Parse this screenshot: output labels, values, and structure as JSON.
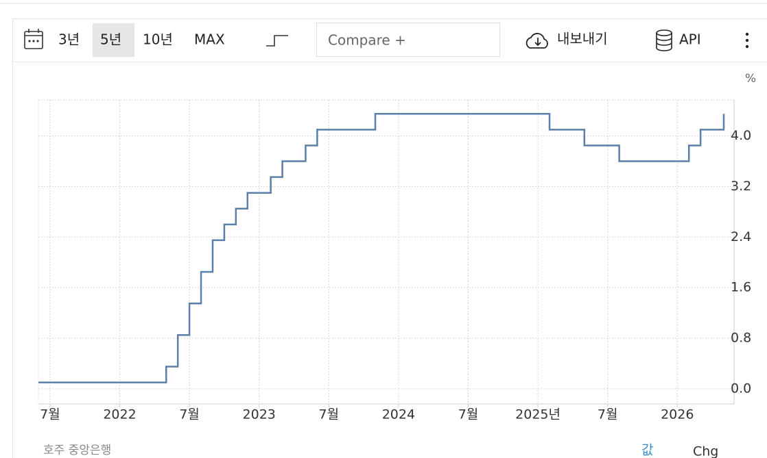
{
  "toolbar": {
    "ranges": [
      "3년",
      "5년",
      "10년",
      "MAX"
    ],
    "compare": "Compare +",
    "export": "내보내기",
    "api": "API"
  },
  "footer": {
    "source": "호주 중앙은행",
    "value_tab": "값",
    "chg_tab": "Chg"
  },
  "chart_data": {
    "type": "line",
    "step": true,
    "y_label": "%",
    "color": "#5b7fa8",
    "grid": true,
    "x": [
      "2021-06",
      "2022-05",
      "2022-06",
      "2022-07",
      "2022-08",
      "2022-09",
      "2022-10",
      "2022-11",
      "2022-12",
      "2023-02",
      "2023-03",
      "2023-05",
      "2023-06",
      "2023-11",
      "2025-02",
      "2025-05",
      "2025-08",
      "2026-02",
      "2026-03",
      "2026-05"
    ],
    "values": [
      0.1,
      0.35,
      0.85,
      1.35,
      1.85,
      2.35,
      2.6,
      2.85,
      3.1,
      3.35,
      3.6,
      3.85,
      4.1,
      4.35,
      4.1,
      3.85,
      3.6,
      3.85,
      4.1,
      4.35
    ],
    "xlim": [
      "2021-06",
      "2026-05"
    ],
    "xticks": [
      {
        "value": "2021-07",
        "label": "7월"
      },
      {
        "value": "2022-01",
        "label": "2022"
      },
      {
        "value": "2022-07",
        "label": "7월"
      },
      {
        "value": "2023-01",
        "label": "2023"
      },
      {
        "value": "2023-07",
        "label": "7월"
      },
      {
        "value": "2024-01",
        "label": "2024"
      },
      {
        "value": "2024-07",
        "label": "7월"
      },
      {
        "value": "2025-01",
        "label": "2025년"
      },
      {
        "value": "2025-07",
        "label": "7월"
      },
      {
        "value": "2026-01",
        "label": "2026"
      }
    ],
    "ylim": [
      -0.24,
      4.57
    ],
    "yticks": [
      {
        "value": 0,
        "label": "0.0"
      },
      0.8,
      1.6,
      2.4,
      3.2,
      {
        "value": 4,
        "label": "4.0"
      }
    ]
  }
}
